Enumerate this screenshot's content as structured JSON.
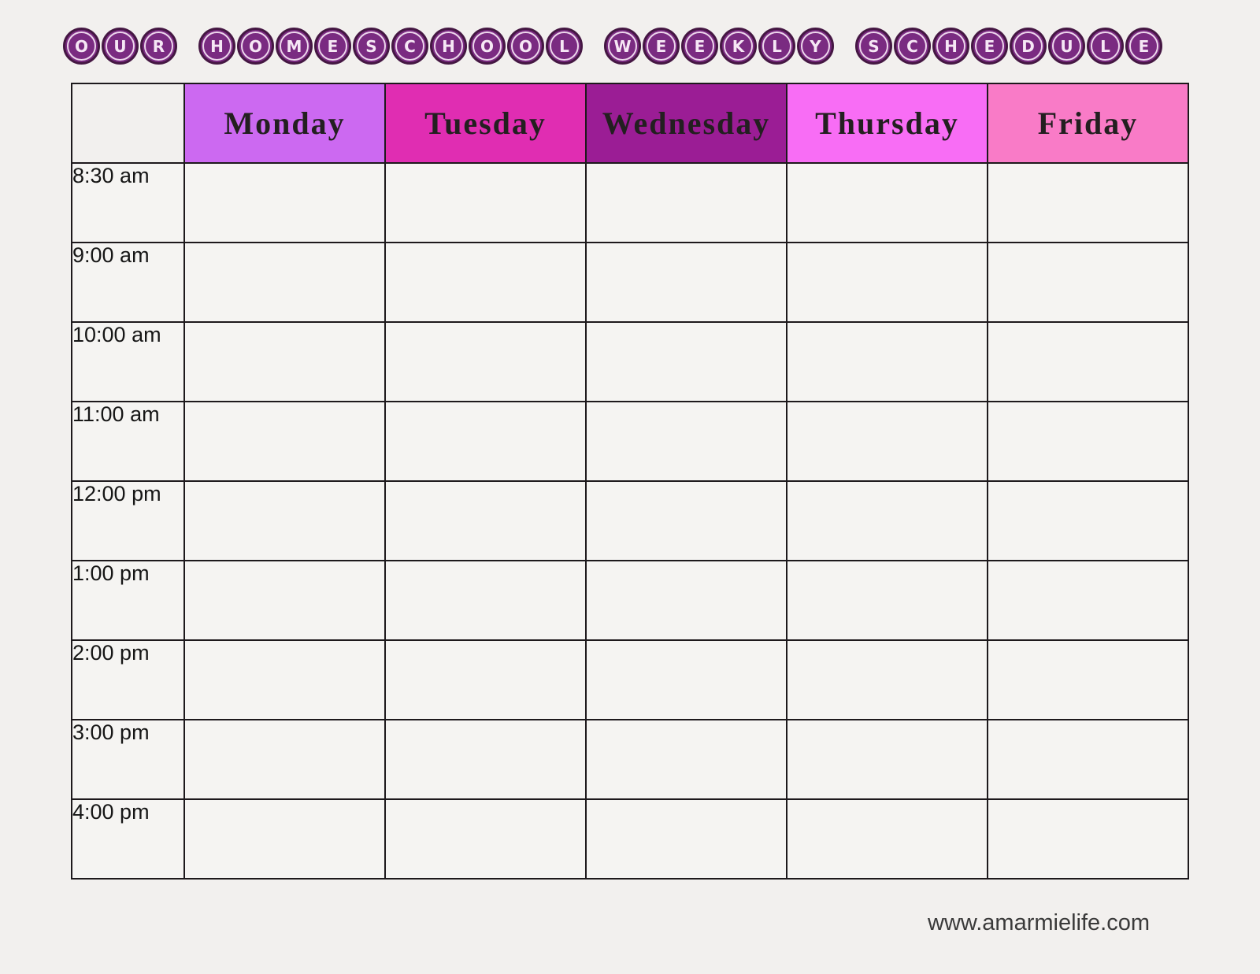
{
  "page": {
    "title_words": [
      "OUR",
      "HOMESCHOOL",
      "WEEKLY",
      "SCHEDULE"
    ],
    "website": "www.amarmielife.com"
  },
  "colors": {
    "page_bg": "#F2F0EE",
    "cell_bg": "#F5F4F2",
    "grid_border": "#1D191C",
    "badge_fill": "#7A2B81",
    "badge_outer_ring": "#451743",
    "badge_inner_ring": "#EDD6EC",
    "badge_letter": "#F6E7F5",
    "day_text": "#231F20"
  },
  "schedule": {
    "days": [
      {
        "label": "Monday",
        "color": "#CC69F1"
      },
      {
        "label": "Tuesday",
        "color": "#E02DB2"
      },
      {
        "label": "Wednesday",
        "color": "#9B1D95"
      },
      {
        "label": "Thursday",
        "color": "#F86DF5"
      },
      {
        "label": "Friday",
        "color": "#F97BC7"
      }
    ],
    "times": [
      "8:30 am",
      "9:00 am",
      "10:00 am",
      "11:00 am",
      "12:00 pm",
      "1:00 pm",
      "2:00 pm",
      "3:00 pm",
      "4:00 pm"
    ]
  }
}
